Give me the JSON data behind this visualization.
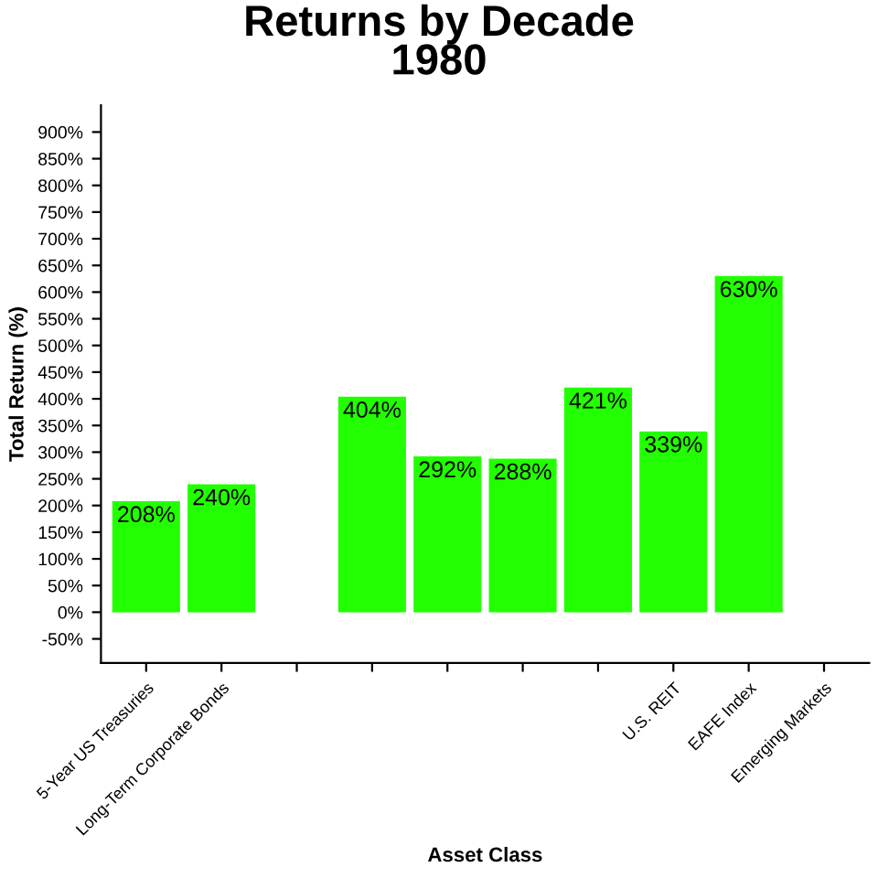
{
  "chart_data": {
    "type": "bar",
    "title": "Returns by Decade\n1980",
    "xlabel": "Asset Class",
    "ylabel": "Total Return (%)",
    "categories": [
      "5-Year US Treasuries",
      "Long-Term Corporate Bonds",
      null,
      null,
      null,
      null,
      null,
      "U.S. REIT",
      "EAFE Index",
      "Emerging Markets"
    ],
    "values": [
      208,
      240,
      null,
      404,
      292,
      288,
      421,
      339,
      630,
      null
    ],
    "value_labels": [
      "208%",
      "240%",
      null,
      "404%",
      "292%",
      "288%",
      "421%",
      "339%",
      "630%",
      null
    ],
    "color": "#22ff00",
    "ylim": [
      -95,
      950
    ],
    "yticks": [
      {
        "value": -50,
        "label": "-50%"
      },
      {
        "value": 0,
        "label": "0%"
      },
      {
        "value": 50,
        "label": "50%"
      },
      {
        "value": 100,
        "label": "100%"
      },
      {
        "value": 150,
        "label": "150%"
      },
      {
        "value": 200,
        "label": "200%"
      },
      {
        "value": 250,
        "label": "250%"
      },
      {
        "value": 300,
        "label": "300%"
      },
      {
        "value": 350,
        "label": "350%"
      },
      {
        "value": 400,
        "label": "400%"
      },
      {
        "value": 450,
        "label": "450%"
      },
      {
        "value": 500,
        "label": "500%"
      },
      {
        "value": 550,
        "label": "550%"
      },
      {
        "value": 600,
        "label": "600%"
      },
      {
        "value": 650,
        "label": "650%"
      },
      {
        "value": 700,
        "label": "700%"
      },
      {
        "value": 750,
        "label": "750%"
      },
      {
        "value": 800,
        "label": "800%"
      },
      {
        "value": 850,
        "label": "850%"
      },
      {
        "value": 900,
        "label": "900%"
      }
    ],
    "grid": false,
    "legend": false
  }
}
